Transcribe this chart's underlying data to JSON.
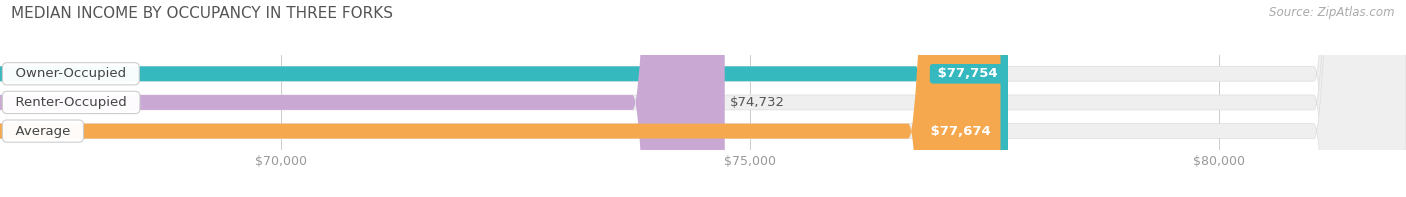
{
  "title": "MEDIAN INCOME BY OCCUPANCY IN THREE FORKS",
  "source": "Source: ZipAtlas.com",
  "categories": [
    "Owner-Occupied",
    "Renter-Occupied",
    "Average"
  ],
  "values": [
    77754,
    74732,
    77674
  ],
  "bar_colors": [
    "#36b8bf",
    "#c9a8d4",
    "#f5a84e"
  ],
  "bar_labels": [
    "$77,754",
    "$74,732",
    "$77,674"
  ],
  "label_in_bar": [
    true,
    false,
    true
  ],
  "xmin": 0,
  "xmax": 82000,
  "xlim_display": [
    67000,
    82000
  ],
  "xticks": [
    70000,
    75000,
    80000
  ],
  "xtick_labels": [
    "$70,000",
    "$75,000",
    "$80,000"
  ],
  "bg_color": "#ffffff",
  "bar_bg_color": "#efefef",
  "title_fontsize": 11,
  "source_fontsize": 8.5,
  "label_fontsize": 9.5,
  "category_fontsize": 9.5,
  "tick_fontsize": 9,
  "bar_height": 0.52,
  "bar_border_color": "#dddddd",
  "bar_gap": 0.18
}
